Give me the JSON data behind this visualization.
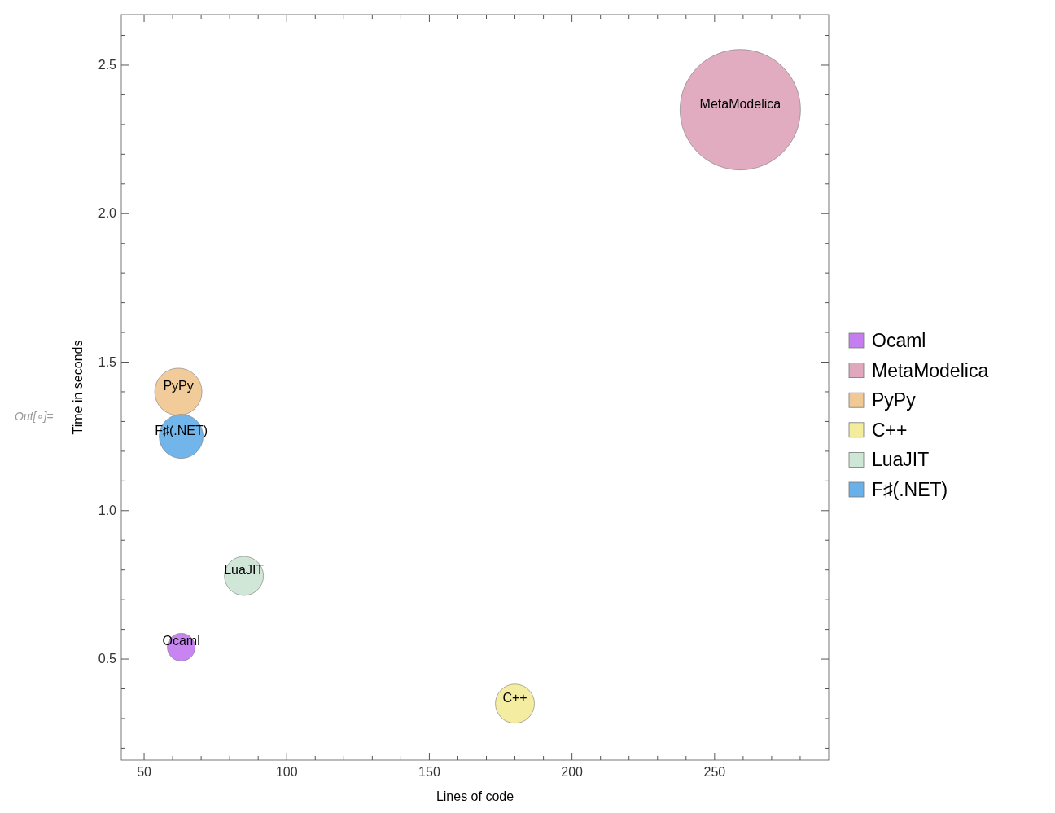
{
  "chart_data": {
    "type": "bubble",
    "xlabel": "Lines of code",
    "ylabel": "Time in seconds",
    "annotations": [
      "Out[∘]="
    ],
    "xlim": [
      42,
      290
    ],
    "ylim": [
      0.16,
      2.67
    ],
    "xticks": [
      50,
      {
        "value": 60,
        "label": null
      },
      {
        "value": 70,
        "label": null
      },
      {
        "value": 80,
        "label": null
      },
      {
        "value": 90,
        "label": null
      },
      100,
      {
        "value": 110,
        "label": null
      },
      {
        "value": 120,
        "label": null
      },
      {
        "value": 130,
        "label": null
      },
      {
        "value": 140,
        "label": null
      },
      150,
      {
        "value": 160,
        "label": null
      },
      {
        "value": 170,
        "label": null
      },
      {
        "value": 180,
        "label": null
      },
      {
        "value": 190,
        "label": null
      },
      200,
      {
        "value": 210,
        "label": null
      },
      {
        "value": 220,
        "label": null
      },
      {
        "value": 230,
        "label": null
      },
      {
        "value": 240,
        "label": null
      },
      250,
      {
        "value": 260,
        "label": null
      },
      {
        "value": 270,
        "label": null
      },
      {
        "value": 280,
        "label": null
      }
    ],
    "yticks": [
      {
        "value": 0.2,
        "label": null
      },
      {
        "value": 0.3,
        "label": null
      },
      {
        "value": 0.4,
        "label": null
      },
      0.5,
      {
        "value": 0.6,
        "label": null
      },
      {
        "value": 0.7,
        "label": null
      },
      {
        "value": 0.8,
        "label": null
      },
      {
        "value": 0.9,
        "label": null
      },
      {
        "value": 1,
        "label": "1.0"
      },
      {
        "value": 1.1,
        "label": null
      },
      {
        "value": 1.2,
        "label": null
      },
      {
        "value": 1.3,
        "label": null
      },
      {
        "value": 1.4,
        "label": null
      },
      1.5,
      {
        "value": 1.6,
        "label": null
      },
      {
        "value": 1.7,
        "label": null
      },
      {
        "value": 1.8,
        "label": null
      },
      {
        "value": 1.9,
        "label": null
      },
      {
        "value": 2,
        "label": "2.0"
      },
      {
        "value": 2.1,
        "label": null
      },
      {
        "value": 2.2,
        "label": null
      },
      {
        "value": 2.3,
        "label": null
      },
      {
        "value": 2.4,
        "label": null
      },
      2.5,
      {
        "value": 2.6,
        "label": null
      }
    ],
    "grid": false,
    "legend": "right",
    "series": [
      {
        "name": "Ocaml",
        "color": "#c57ef0",
        "x": [
          63
        ],
        "values": [
          0.54
        ],
        "sizes": [
          0.053
        ]
      },
      {
        "name": "MetaModelica",
        "color": "#dfa8bd",
        "x": [
          259
        ],
        "values": [
          2.35
        ],
        "sizes": [
          1
        ]
      },
      {
        "name": "PyPy",
        "color": "#f0c995",
        "x": [
          62
        ],
        "values": [
          1.4
        ],
        "sizes": [
          0.154
        ]
      },
      {
        "name": "C++",
        "color": "#f3ec9c",
        "x": [
          180
        ],
        "values": [
          0.35
        ],
        "sizes": [
          0.105
        ]
      },
      {
        "name": "LuaJIT",
        "color": "#cde6d6",
        "x": [
          85
        ],
        "values": [
          0.78
        ],
        "sizes": [
          0.105
        ]
      },
      {
        "name": "F♯(.NET)",
        "color": "#6ab1ea",
        "x": [
          63
        ],
        "values": [
          1.25
        ],
        "sizes": [
          0.133
        ]
      }
    ]
  }
}
